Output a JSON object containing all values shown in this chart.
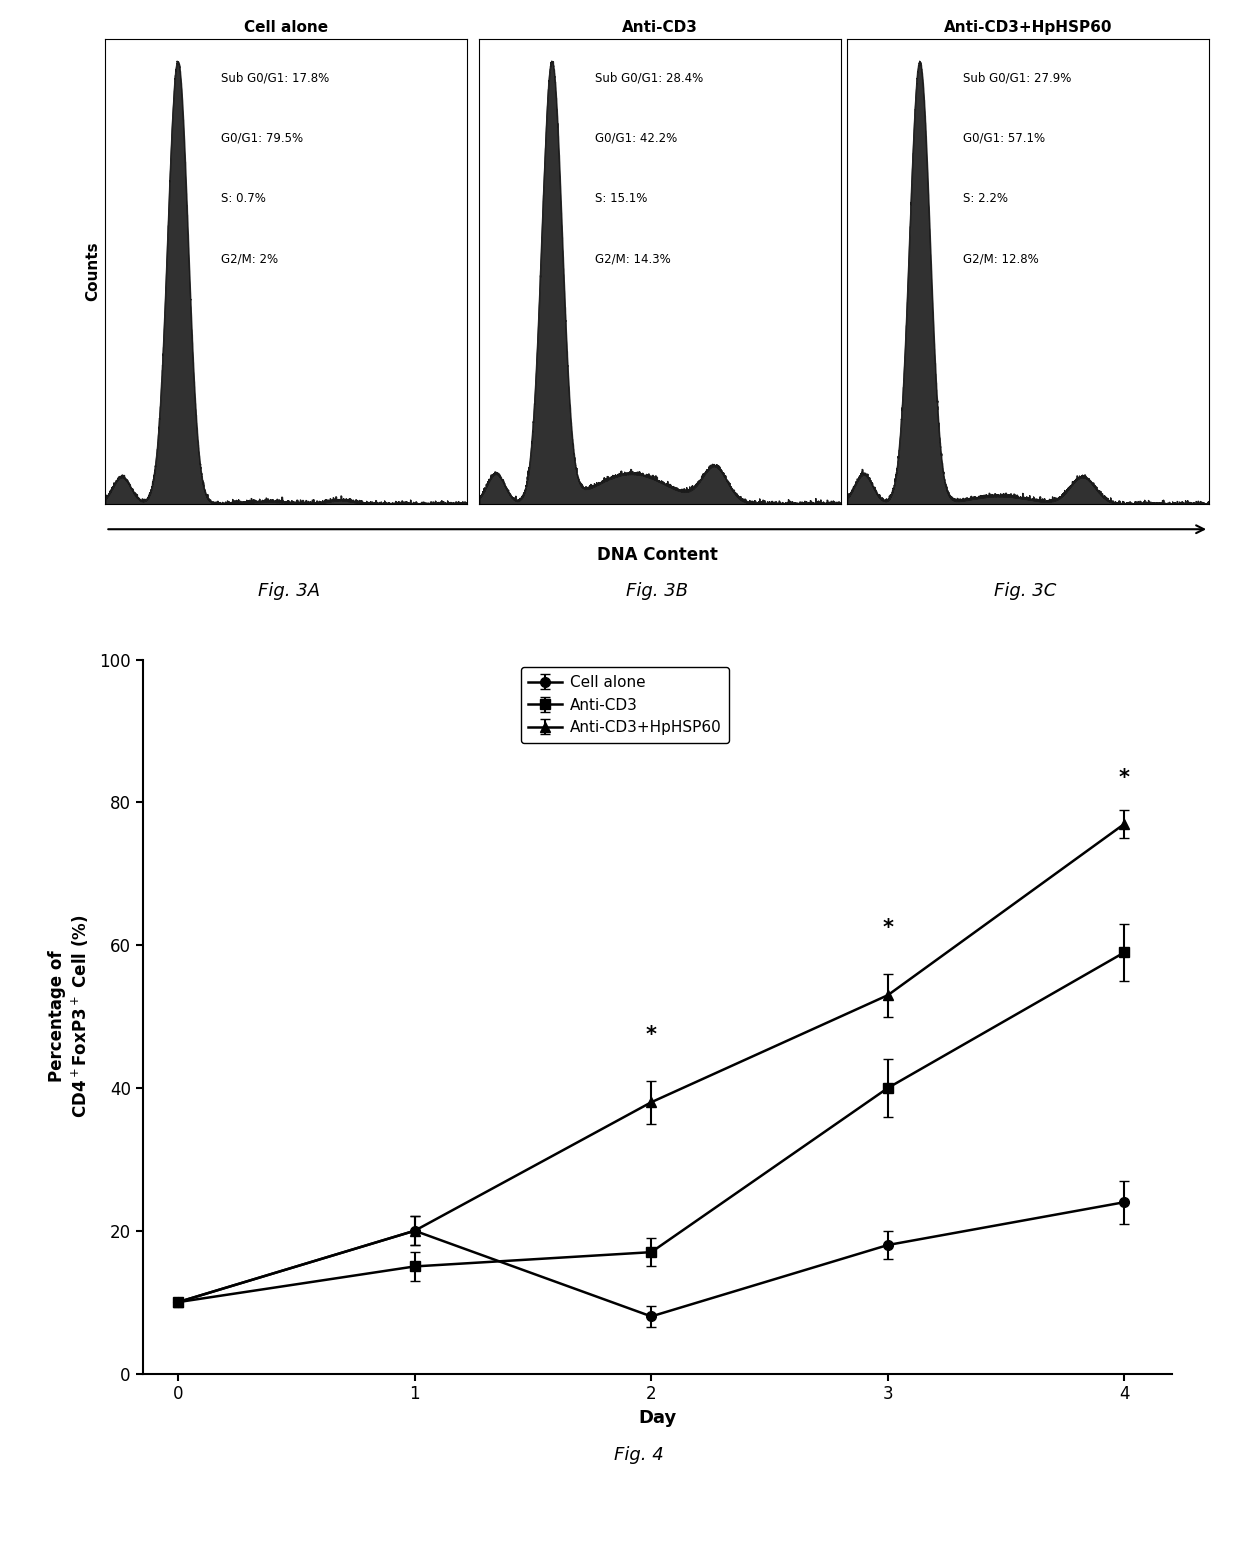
{
  "fig3_titles": [
    "Cell alone",
    "Anti-CD3",
    "Anti-CD3+HpHSP60"
  ],
  "fig3_labels": [
    [
      "Sub G0/G1: 17.8%",
      "G0/G1: 79.5%",
      "S: 0.7%",
      "G2/M: 2%"
    ],
    [
      "Sub G0/G1: 28.4%",
      "G0/G1: 42.2%",
      "S: 15.1%",
      "G2/M: 14.3%"
    ],
    [
      "Sub G0/G1: 27.9%",
      "G0/G1: 57.1%",
      "S: 2.2%",
      "G2/M: 12.8%"
    ]
  ],
  "fig3_xlabel": "DNA Content",
  "fig3_ylabel": "Counts",
  "fig3_captions": [
    "Fig. 3A",
    "Fig. 3B",
    "Fig. 3C"
  ],
  "fig4_days": [
    0,
    1,
    2,
    3,
    4
  ],
  "fig4_cell_alone": [
    10,
    20,
    8,
    18,
    24
  ],
  "fig4_cell_alone_err": [
    0,
    2,
    1.5,
    2,
    3
  ],
  "fig4_anti_cd3": [
    10,
    15,
    17,
    40,
    59
  ],
  "fig4_anti_cd3_err": [
    0,
    2,
    2,
    4,
    4
  ],
  "fig4_anti_cd3_hphsp60": [
    10,
    20,
    38,
    53,
    77
  ],
  "fig4_anti_cd3_hphsp60_err": [
    0,
    2,
    3,
    3,
    2
  ],
  "fig4_xlabel": "Day",
  "fig4_ylabel": "Percentage of\nCD4$^+$FoxP3$^+$ Cell (%)",
  "fig4_ylim": [
    0,
    100
  ],
  "fig4_yticks": [
    0,
    20,
    40,
    60,
    80,
    100
  ],
  "fig4_caption": "Fig. 4",
  "fig4_legend": [
    "Cell alone",
    "Anti-CD3",
    "Anti-CD3+HpHSP60"
  ],
  "fig4_star_days": [
    2,
    3,
    4
  ],
  "bg_color": "#ffffff",
  "hist_color": "#1a1a1a",
  "line_color": "#1a1a1a"
}
